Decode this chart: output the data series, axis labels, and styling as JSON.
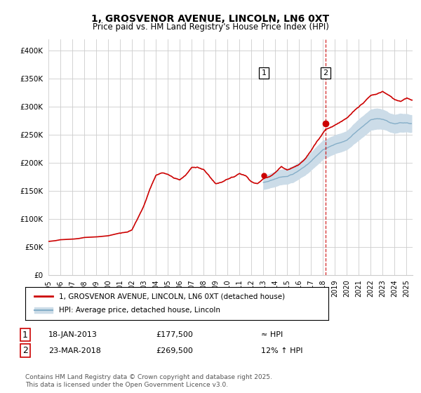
{
  "title": "1, GROSVENOR AVENUE, LINCOLN, LN6 0XT",
  "subtitle": "Price paid vs. HM Land Registry's House Price Index (HPI)",
  "legend_line1": "1, GROSVENOR AVENUE, LINCOLN, LN6 0XT (detached house)",
  "legend_line2": "HPI: Average price, detached house, Lincoln",
  "annotation1_date": "18-JAN-2013",
  "annotation1_price": "£177,500",
  "annotation1_hpi": "≈ HPI",
  "annotation2_date": "23-MAR-2018",
  "annotation2_price": "£269,500",
  "annotation2_hpi": "12% ↑ HPI",
  "footer": "Contains HM Land Registry data © Crown copyright and database right 2025.\nThis data is licensed under the Open Government Licence v3.0.",
  "ylim": [
    0,
    420000
  ],
  "yticks": [
    0,
    50000,
    100000,
    150000,
    200000,
    250000,
    300000,
    350000,
    400000
  ],
  "hpi_band_color": "#ccdce8",
  "hpi_line_color": "#85aec8",
  "sale_line_color": "#cc0000",
  "dashed_line_color": "#cc0000",
  "sale1_x": 2013.05,
  "sale2_x": 2018.22,
  "sale1_y": 177500,
  "sale2_y": 269500,
  "background_color": "#ffffff",
  "grid_color": "#cccccc",
  "xlim_start": 1995,
  "xlim_end": 2025.5
}
